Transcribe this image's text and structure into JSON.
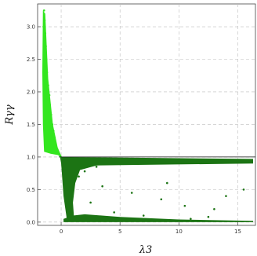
{
  "chart_data": {
    "type": "scatter",
    "title": "",
    "xlabel": "λ3",
    "ylabel": "Rγγ",
    "xlim": [
      -2.0,
      16.5
    ],
    "ylim": [
      -0.05,
      3.35
    ],
    "xticks": [
      0,
      5,
      10,
      15
    ],
    "yticks": [
      0.0,
      0.5,
      1.0,
      1.5,
      2.0,
      2.5,
      3.0
    ],
    "xtick_labels": [
      "0",
      "5",
      "10",
      "15"
    ],
    "ytick_labels": [
      "0.0",
      "0.5",
      "1.0",
      "1.5",
      "2.0",
      "2.5",
      "3.0"
    ],
    "grid": true,
    "reference_line": {
      "y": 1.0
    },
    "series": [
      {
        "color": "#33e61f",
        "points": [
          [
            -1.45,
            3.25
          ],
          [
            -1.4,
            3.1
          ],
          [
            -1.5,
            3.0
          ],
          [
            -1.35,
            2.9
          ],
          [
            -1.45,
            2.8
          ],
          [
            -1.3,
            2.7
          ],
          [
            -1.4,
            2.6
          ],
          [
            -1.25,
            2.5
          ],
          [
            -1.35,
            2.4
          ],
          [
            -1.2,
            2.3
          ],
          [
            -1.3,
            2.2
          ],
          [
            -1.1,
            2.1
          ],
          [
            -1.25,
            2.0
          ],
          [
            -1.0,
            1.95
          ],
          [
            -1.15,
            1.85
          ],
          [
            -0.95,
            1.8
          ],
          [
            -1.1,
            1.7
          ],
          [
            -0.85,
            1.65
          ],
          [
            -1.0,
            1.55
          ],
          [
            -0.75,
            1.5
          ],
          [
            -0.9,
            1.45
          ],
          [
            -0.65,
            1.4
          ],
          [
            -0.8,
            1.35
          ],
          [
            -0.55,
            1.3
          ],
          [
            -0.7,
            1.25
          ],
          [
            -0.45,
            1.2
          ],
          [
            -0.6,
            1.15
          ],
          [
            -0.35,
            1.1
          ],
          [
            -0.5,
            1.08
          ],
          [
            -0.25,
            1.05
          ],
          [
            -0.15,
            1.03
          ],
          [
            -0.05,
            1.01
          ]
        ]
      },
      {
        "color": "#1c7414",
        "points": [
          [
            0.05,
            0.98
          ],
          [
            0.2,
            0.9
          ],
          [
            0.3,
            0.8
          ],
          [
            0.4,
            0.65
          ],
          [
            0.5,
            0.5
          ],
          [
            0.6,
            0.35
          ],
          [
            0.7,
            0.2
          ],
          [
            0.8,
            0.1
          ],
          [
            1.0,
            0.05
          ],
          [
            1.5,
            0.7
          ],
          [
            2.0,
            0.78
          ],
          [
            3.0,
            0.85
          ],
          [
            5.0,
            0.9
          ],
          [
            8.0,
            0.92
          ],
          [
            12.0,
            0.93
          ],
          [
            16.0,
            0.93
          ],
          [
            2.5,
            0.3
          ],
          [
            3.5,
            0.55
          ],
          [
            4.5,
            0.15
          ],
          [
            6.0,
            0.45
          ],
          [
            7.0,
            0.1
          ],
          [
            9.0,
            0.6
          ],
          [
            10.5,
            0.25
          ],
          [
            12.5,
            0.08
          ],
          [
            14.0,
            0.4
          ],
          [
            15.5,
            0.5
          ],
          [
            5.5,
            0.05
          ],
          [
            11.0,
            0.05
          ],
          [
            13.0,
            0.2
          ],
          [
            8.5,
            0.35
          ]
        ]
      }
    ]
  }
}
